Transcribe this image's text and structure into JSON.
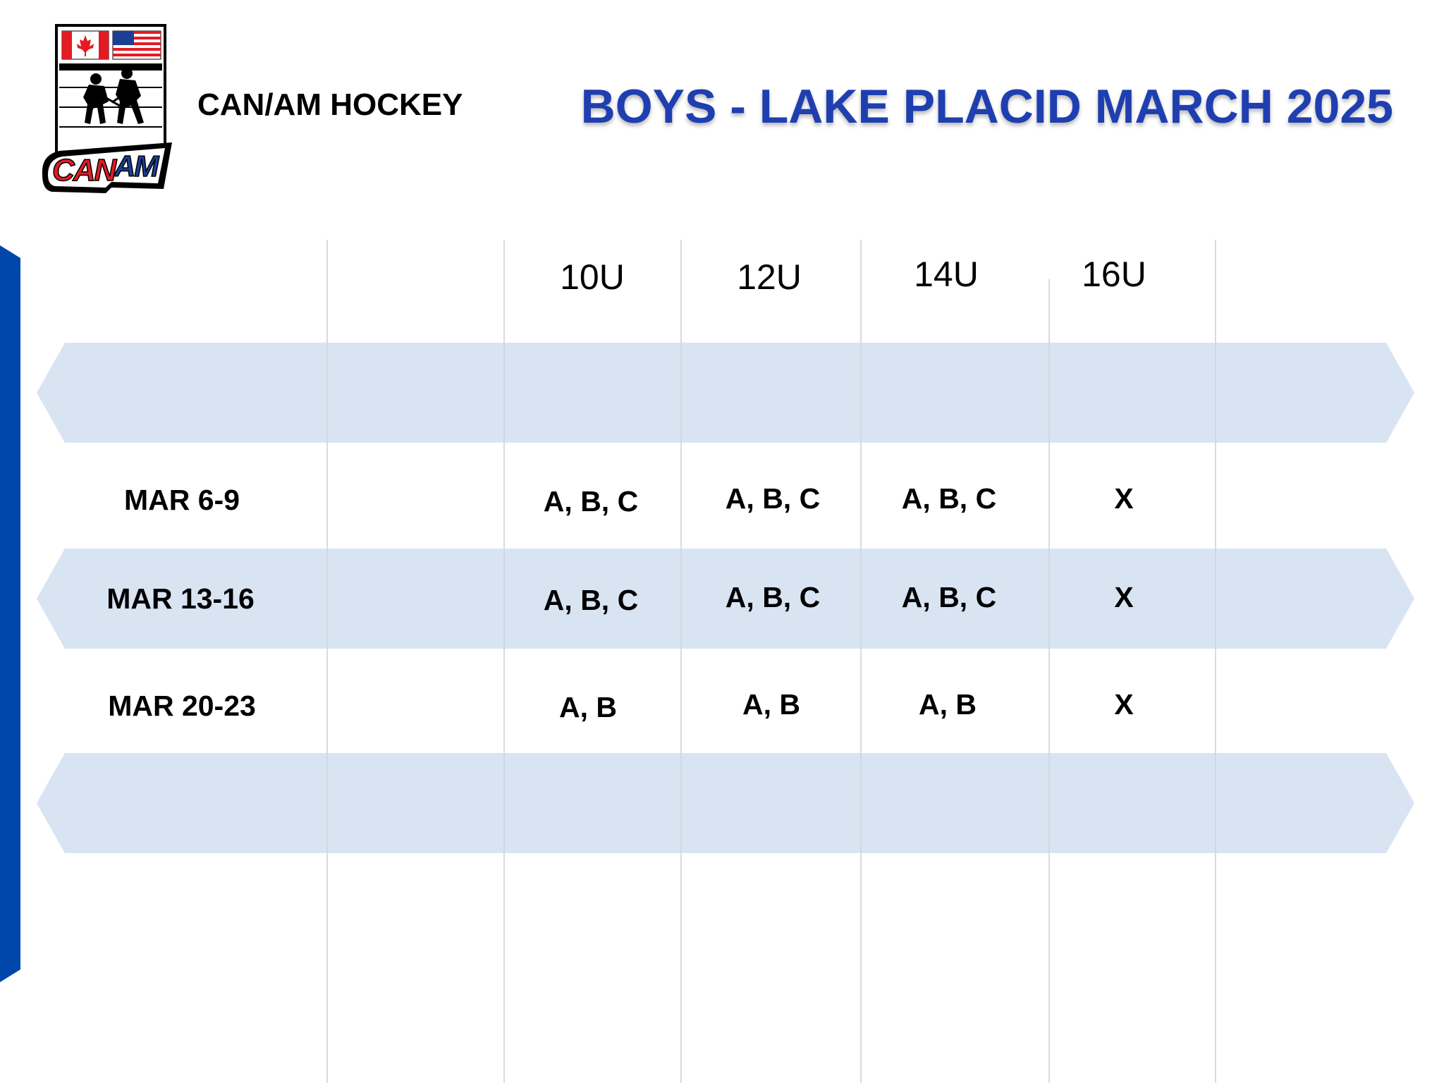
{
  "header": {
    "brand": "CAN/AM HOCKEY",
    "title": "BOYS - LAKE PLACID MARCH 2025",
    "logo_text": "CAN AM"
  },
  "table": {
    "columns": [
      "10U",
      "12U",
      "14U",
      "16U"
    ],
    "rows": [
      {
        "label": "MAR 6-9",
        "cells": [
          "A, B, C",
          "A, B, C",
          "A, B, C",
          "X"
        ]
      },
      {
        "label": "MAR 13-16",
        "cells": [
          "A, B, C",
          "A, B, C",
          "A, B, C",
          "X"
        ]
      },
      {
        "label": "MAR 20-23",
        "cells": [
          "A, B",
          "A, B",
          "A, B",
          "X"
        ]
      }
    ]
  },
  "colors": {
    "title": "#1f3fb0",
    "accent_bar": "#0047ab",
    "band": "#d9e4f3",
    "logo_red": "#e31b23",
    "logo_blue": "#1b3f94"
  }
}
